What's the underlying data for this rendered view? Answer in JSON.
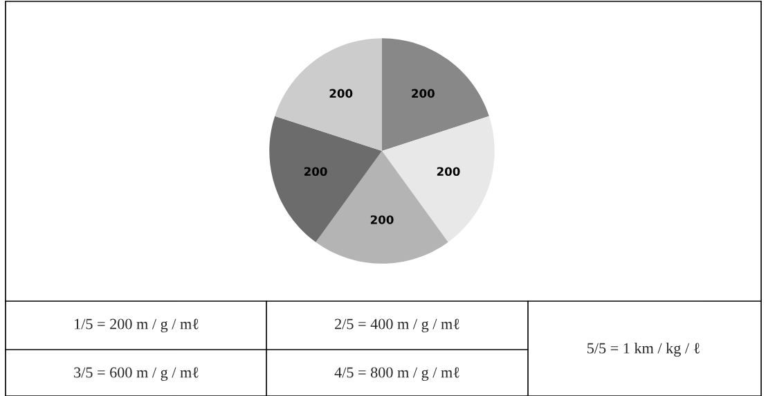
{
  "chart_data": {
    "type": "pie",
    "categories": [
      null,
      null,
      null,
      null,
      null
    ],
    "values": [
      200,
      200,
      200,
      200,
      200
    ],
    "colors": [
      "#888888",
      "#e8e8e8",
      "#b4b4b4",
      "#6c6c6c",
      "#cccccc"
    ],
    "data_labels": true,
    "annotations": [
      "1/5 = 200 m / g / mℓ",
      "2/5 = 400 m / g / mℓ",
      "3/5 = 600 m / g / mℓ",
      "4/5 = 800 m / g / mℓ",
      "5/5 = 1 km / kg / ℓ"
    ]
  }
}
